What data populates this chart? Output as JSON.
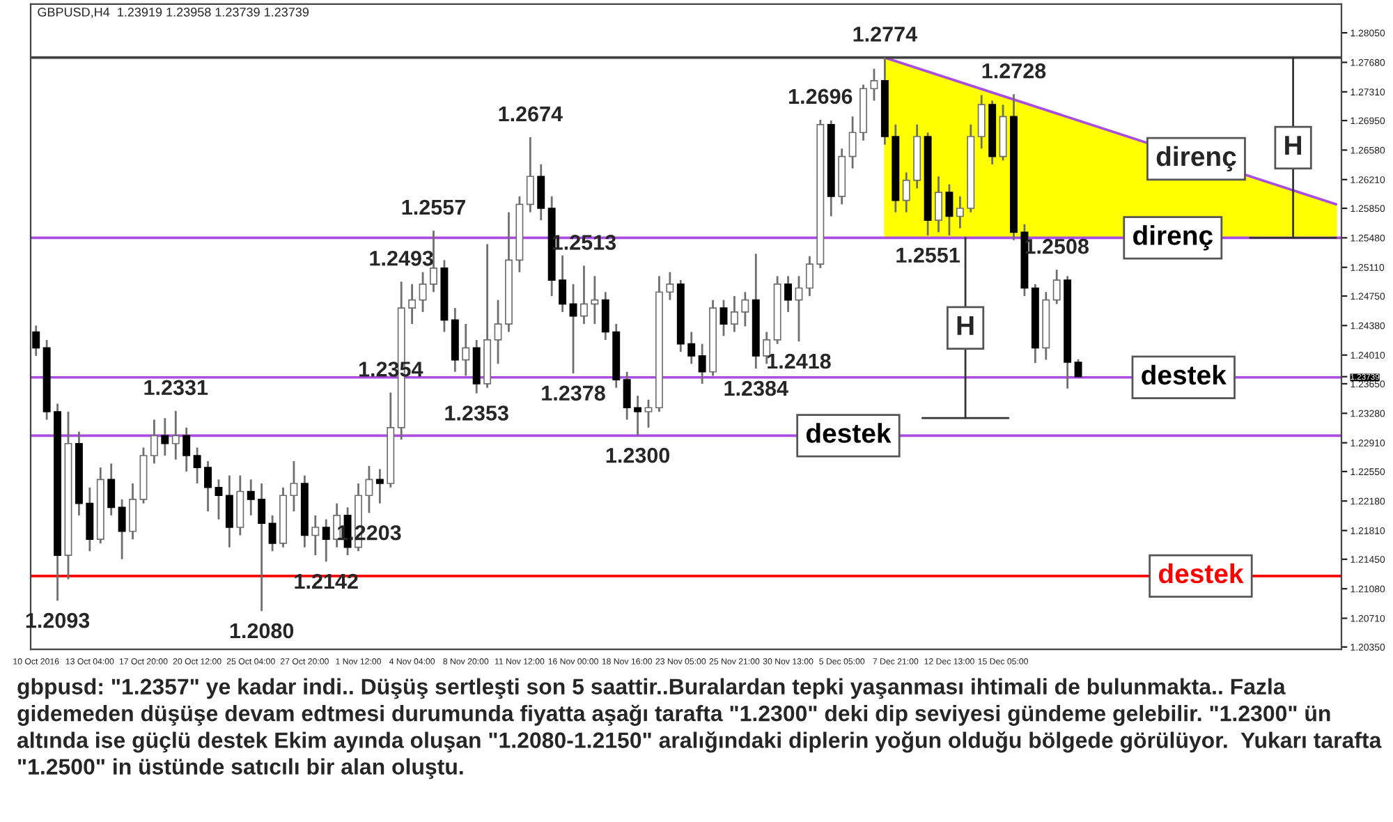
{
  "chart_data": {
    "type": "candlestick",
    "title": "GBPUSD,H4  1.23919 1.23958 1.23739 1.23739",
    "categories": [
      "10 Oct 2016",
      null,
      null,
      null,
      null,
      "13 Oct 04:00",
      null,
      null,
      null,
      null,
      "17 Oct 20:00",
      null,
      null,
      null,
      null,
      "20 Oct 12:00",
      null,
      null,
      null,
      null,
      "25 Oct 04:00",
      null,
      null,
      null,
      null,
      "27 Oct 20:00",
      null,
      null,
      null,
      null,
      "1 Nov 12:00",
      null,
      null,
      null,
      null,
      "4 Nov 04:00",
      null,
      null,
      null,
      null,
      "8 Nov 20:00",
      null,
      null,
      null,
      null,
      "11 Nov 12:00",
      null,
      null,
      null,
      null,
      "16 Nov 00:00",
      null,
      null,
      null,
      null,
      "18 Nov 16:00",
      null,
      null,
      null,
      null,
      "23 Nov 05:00",
      null,
      null,
      null,
      null,
      "25 Nov 21:00",
      null,
      null,
      null,
      null,
      "30 Nov 13:00",
      null,
      null,
      null,
      null,
      "5 Dec 05:00",
      null,
      null,
      null,
      null,
      "7 Dec 21:00",
      null,
      null,
      null,
      null,
      "12 Dec 13:00",
      null,
      null,
      null,
      null,
      "15 Dec 05:00",
      null,
      null,
      null,
      null,
      null,
      null,
      null,
      null,
      null,
      null,
      null,
      null,
      null,
      null,
      null,
      null,
      null,
      null,
      null,
      null,
      null,
      null,
      null,
      null,
      null,
      null,
      null,
      null,
      null,
      null,
      null
    ],
    "ohlc": [
      [
        1.243,
        1.2438,
        1.24,
        1.241
      ],
      [
        1.241,
        1.242,
        1.232,
        1.233
      ],
      [
        1.233,
        1.234,
        1.2093,
        1.215
      ],
      [
        1.215,
        1.233,
        1.212,
        1.229
      ],
      [
        1.229,
        1.2305,
        1.22,
        1.2215
      ],
      [
        1.2215,
        1.2235,
        1.2155,
        1.217
      ],
      [
        1.217,
        1.226,
        1.2165,
        1.2245
      ],
      [
        1.2245,
        1.2265,
        1.22,
        1.221
      ],
      [
        1.221,
        1.222,
        1.2145,
        1.218
      ],
      [
        1.218,
        1.224,
        1.217,
        1.222
      ],
      [
        1.222,
        1.2285,
        1.2215,
        1.2275
      ],
      [
        1.2275,
        1.232,
        1.2265,
        1.23
      ],
      [
        1.23,
        1.2322,
        1.2275,
        1.229
      ],
      [
        1.229,
        1.2331,
        1.227,
        1.23
      ],
      [
        1.23,
        1.231,
        1.2255,
        1.2275
      ],
      [
        1.2275,
        1.2285,
        1.224,
        1.226
      ],
      [
        1.226,
        1.2268,
        1.2205,
        1.2235
      ],
      [
        1.2235,
        1.2245,
        1.2195,
        1.2225
      ],
      [
        1.2225,
        1.225,
        1.216,
        1.2185
      ],
      [
        1.2185,
        1.225,
        1.2175,
        1.223
      ],
      [
        1.223,
        1.2245,
        1.22,
        1.222
      ],
      [
        1.222,
        1.224,
        1.208,
        1.219
      ],
      [
        1.219,
        1.22,
        1.2155,
        1.2165
      ],
      [
        1.2165,
        1.2235,
        1.216,
        1.2225
      ],
      [
        1.2225,
        1.2268,
        1.2205,
        1.224
      ],
      [
        1.224,
        1.225,
        1.216,
        1.2175
      ],
      [
        1.2175,
        1.22,
        1.215,
        1.2185
      ],
      [
        1.2185,
        1.2195,
        1.2142,
        1.217
      ],
      [
        1.217,
        1.2215,
        1.216,
        1.22
      ],
      [
        1.22,
        1.221,
        1.215,
        1.216
      ],
      [
        1.216,
        1.224,
        1.2155,
        1.2225
      ],
      [
        1.2225,
        1.2262,
        1.2203,
        1.2245
      ],
      [
        1.2245,
        1.2258,
        1.2215,
        1.224
      ],
      [
        1.224,
        1.2354,
        1.2235,
        1.231
      ],
      [
        1.231,
        1.2493,
        1.2295,
        1.246
      ],
      [
        1.246,
        1.249,
        1.244,
        1.247
      ],
      [
        1.247,
        1.2505,
        1.2455,
        1.249
      ],
      [
        1.249,
        1.2557,
        1.248,
        1.251
      ],
      [
        1.251,
        1.252,
        1.243,
        1.2445
      ],
      [
        1.2445,
        1.246,
        1.238,
        1.2395
      ],
      [
        1.2395,
        1.244,
        1.2375,
        1.241
      ],
      [
        1.241,
        1.242,
        1.2353,
        1.2365
      ],
      [
        1.2365,
        1.254,
        1.236,
        1.242
      ],
      [
        1.242,
        1.247,
        1.239,
        1.244
      ],
      [
        1.244,
        1.258,
        1.243,
        1.252
      ],
      [
        1.252,
        1.26,
        1.2505,
        1.259
      ],
      [
        1.259,
        1.2674,
        1.258,
        1.2625
      ],
      [
        1.2625,
        1.264,
        1.257,
        1.2585
      ],
      [
        1.2585,
        1.26,
        1.2475,
        1.2495
      ],
      [
        1.2495,
        1.2526,
        1.2455,
        1.2465
      ],
      [
        1.2465,
        1.249,
        1.2378,
        1.245
      ],
      [
        1.245,
        1.2513,
        1.244,
        1.2465
      ],
      [
        1.2465,
        1.25,
        1.244,
        1.247
      ],
      [
        1.247,
        1.248,
        1.242,
        1.243
      ],
      [
        1.243,
        1.244,
        1.236,
        1.237
      ],
      [
        1.237,
        1.238,
        1.232,
        1.2335
      ],
      [
        1.2335,
        1.235,
        1.23,
        1.233
      ],
      [
        1.233,
        1.2345,
        1.231,
        1.2335
      ],
      [
        1.2335,
        1.25,
        1.233,
        1.248
      ],
      [
        1.248,
        1.2505,
        1.247,
        1.249
      ],
      [
        1.249,
        1.2495,
        1.2405,
        1.2415
      ],
      [
        1.2415,
        1.243,
        1.239,
        1.24
      ],
      [
        1.24,
        1.2415,
        1.2365,
        1.238
      ],
      [
        1.238,
        1.247,
        1.2375,
        1.246
      ],
      [
        1.246,
        1.247,
        1.2425,
        1.244
      ],
      [
        1.244,
        1.2475,
        1.243,
        1.2455
      ],
      [
        1.2455,
        1.248,
        1.2437,
        1.247
      ],
      [
        1.247,
        1.2528,
        1.2384,
        1.24
      ],
      [
        1.24,
        1.243,
        1.239,
        1.242
      ],
      [
        1.242,
        1.25,
        1.2415,
        1.249
      ],
      [
        1.249,
        1.25,
        1.2455,
        1.247
      ],
      [
        1.247,
        1.25,
        1.2418,
        1.2485
      ],
      [
        1.2485,
        1.2525,
        1.2475,
        1.2515
      ],
      [
        1.2515,
        1.2696,
        1.251,
        1.269
      ],
      [
        1.269,
        1.2695,
        1.2575,
        1.26
      ],
      [
        1.26,
        1.266,
        1.259,
        1.265
      ],
      [
        1.265,
        1.27,
        1.2635,
        1.268
      ],
      [
        1.268,
        1.274,
        1.267,
        1.2735
      ],
      [
        1.2735,
        1.276,
        1.272,
        1.2745
      ],
      [
        1.2745,
        1.2774,
        1.2665,
        1.2675
      ],
      [
        1.2675,
        1.269,
        1.258,
        1.2595
      ],
      [
        1.2595,
        1.263,
        1.258,
        1.262
      ],
      [
        1.262,
        1.269,
        1.261,
        1.2675
      ],
      [
        1.2675,
        1.268,
        1.2551,
        1.257
      ],
      [
        1.257,
        1.2625,
        1.2555,
        1.2605
      ],
      [
        1.2605,
        1.2615,
        1.2551,
        1.2575
      ],
      [
        1.2575,
        1.26,
        1.256,
        1.2585
      ],
      [
        1.2585,
        1.269,
        1.258,
        1.2675
      ],
      [
        1.2675,
        1.2727,
        1.266,
        1.2715
      ],
      [
        1.2715,
        1.272,
        1.264,
        1.265
      ],
      [
        1.265,
        1.2715,
        1.2645,
        1.27
      ],
      [
        1.27,
        1.2728,
        1.2545,
        1.2555
      ],
      [
        1.2555,
        1.2565,
        1.2475,
        1.2485
      ],
      [
        1.2485,
        1.249,
        1.2391,
        1.241
      ],
      [
        1.241,
        1.248,
        1.2395,
        1.247
      ],
      [
        1.247,
        1.2508,
        1.2465,
        1.2495
      ],
      [
        1.2495,
        1.25,
        1.2359,
        1.2392
      ],
      [
        1.23919,
        1.23958,
        1.23739,
        1.23739
      ],
      null,
      null,
      null,
      null,
      null,
      null,
      null,
      null,
      null,
      null,
      null,
      null,
      null,
      null,
      null,
      null,
      null,
      null,
      null,
      null,
      null,
      null,
      null,
      null
    ],
    "series": [
      {
        "type": "area",
        "color": "#ffff00",
        "values": [
          null,
          null,
          null,
          null,
          null,
          null,
          null,
          null,
          null,
          null,
          null,
          null,
          null,
          null,
          null,
          null,
          null,
          null,
          null,
          null,
          null,
          null,
          null,
          null,
          null,
          null,
          null,
          null,
          null,
          null,
          null,
          null,
          null,
          null,
          null,
          null,
          null,
          null,
          null,
          null,
          null,
          null,
          null,
          null,
          null,
          null,
          null,
          null,
          null,
          null,
          null,
          null,
          null,
          null,
          null,
          null,
          null,
          null,
          null,
          null,
          null,
          null,
          null,
          null,
          null,
          null,
          null,
          null,
          null,
          null,
          null,
          null,
          null,
          null,
          null,
          null,
          null,
          null,
          null,
          1.2774,
          null,
          null,
          null,
          null,
          null,
          null,
          null,
          null,
          null,
          null,
          null,
          null,
          null,
          null,
          null,
          null,
          null,
          null,
          null,
          null,
          null,
          null,
          null,
          null,
          null,
          null,
          null,
          null,
          null,
          null,
          null,
          null,
          null,
          null,
          null,
          null,
          null,
          null,
          null,
          null,
          null,
          1.259
        ]
      },
      {
        "type": "line",
        "name": "direnç",
        "color": "#a94ee0",
        "values": [
          null,
          null,
          null,
          null,
          null,
          null,
          null,
          null,
          null,
          null,
          null,
          null,
          null,
          null,
          null,
          null,
          null,
          null,
          null,
          null,
          null,
          null,
          null,
          null,
          null,
          null,
          null,
          null,
          null,
          null,
          null,
          null,
          null,
          null,
          null,
          null,
          null,
          null,
          null,
          null,
          null,
          null,
          null,
          null,
          null,
          null,
          null,
          null,
          null,
          null,
          null,
          null,
          null,
          null,
          null,
          null,
          null,
          null,
          null,
          null,
          null,
          null,
          null,
          null,
          null,
          null,
          null,
          null,
          null,
          null,
          null,
          null,
          null,
          null,
          null,
          null,
          null,
          null,
          null,
          1.2774,
          null,
          null,
          null,
          null,
          null,
          null,
          null,
          null,
          null,
          null,
          null,
          null,
          null,
          null,
          null,
          null,
          null,
          null,
          null,
          null,
          null,
          null,
          null,
          null,
          null,
          null,
          null,
          null,
          null,
          null,
          null,
          null,
          null,
          null,
          null,
          null,
          null,
          null,
          null,
          null,
          null,
          1.259
        ]
      }
    ],
    "ylim": [
      1.2032,
      1.2841
    ],
    "yticks": [
      {
        "value": 1.2805,
        "label": "1.28050"
      },
      {
        "value": 1.2768,
        "label": "1.27680"
      },
      {
        "value": 1.2731,
        "label": "1.27310"
      },
      {
        "value": 1.2695,
        "label": "1.26950"
      },
      {
        "value": 1.2658,
        "label": "1.26580"
      },
      {
        "value": 1.2621,
        "label": "1.26210"
      },
      {
        "value": 1.2585,
        "label": "1.25850"
      },
      {
        "value": 1.2548,
        "label": "1.25480"
      },
      {
        "value": 1.2511,
        "label": "1.25110"
      },
      {
        "value": 1.2475,
        "label": "1.24750"
      },
      {
        "value": 1.2438,
        "label": "1.24380"
      },
      {
        "value": 1.2401,
        "label": "1.24010"
      },
      {
        "value": 1.23739,
        "label": "1.23739"
      },
      {
        "value": 1.2365,
        "label": "1.23650"
      },
      {
        "value": 1.2328,
        "label": "1.23280"
      },
      {
        "value": 1.2291,
        "label": "1.22910"
      },
      {
        "value": 1.2255,
        "label": "1.22550"
      },
      {
        "value": 1.2218,
        "label": "1.22180"
      },
      {
        "value": 1.2181,
        "label": "1.21810"
      },
      {
        "value": 1.2145,
        "label": "1.21450"
      },
      {
        "value": 1.2108,
        "label": "1.21080"
      },
      {
        "value": 1.2071,
        "label": "1.20710"
      },
      {
        "value": 1.2035,
        "label": "1.20350"
      }
    ],
    "ref_lines": [
      {
        "axis": "y",
        "value": 1.2548,
        "label": "direnç",
        "color": "#a94ee0"
      },
      {
        "axis": "y",
        "value": 1.2373,
        "label": "destek",
        "color": "#a94ee0"
      },
      {
        "axis": "y",
        "value": 1.23,
        "label": "destek",
        "color": "#a94ee0"
      },
      {
        "axis": "y",
        "value": 1.2124,
        "label": "destek",
        "color": "#ff0000"
      },
      {
        "axis": "y",
        "value": 1.2774,
        "color": "#404040"
      }
    ],
    "annotations": [
      {
        "text": "1.2093",
        "y": 1.2093
      },
      {
        "text": "1.2331",
        "y": 1.2331
      },
      {
        "text": "1.2080",
        "y": 1.208
      },
      {
        "text": "1.2142",
        "y": 1.2142
      },
      {
        "text": "1.2203",
        "y": 1.2203
      },
      {
        "text": "1.2354",
        "y": 1.2354
      },
      {
        "text": "1.2493",
        "y": 1.2493
      },
      {
        "text": "1.2557",
        "y": 1.2557
      },
      {
        "text": "1.2353",
        "y": 1.2353
      },
      {
        "text": "1.2674",
        "y": 1.2674
      },
      {
        "text": "1.2378",
        "y": 1.2378
      },
      {
        "text": "1.2513",
        "y": 1.2513
      },
      {
        "text": "1.2300",
        "y": 1.23
      },
      {
        "text": "1.2384",
        "y": 1.2384
      },
      {
        "text": "1.2418",
        "y": 1.2418
      },
      {
        "text": "1.2696",
        "y": 1.2696
      },
      {
        "text": "1.2774",
        "y": 1.2774
      },
      {
        "text": "1.2551",
        "y": 1.2551
      },
      {
        "text": "1.2728",
        "y": 1.2728
      },
      {
        "text": "1.2508",
        "y": 1.2508
      },
      {
        "text": "H",
        "y": 1.2661
      },
      {
        "text": "H",
        "y": 1.2435
      },
      "gbpusd: \"1.2357\" ye kadar indi.. Düşüş sertleşti son 5 saattir..Buralardan tepki yaşanması ihtimali de bulunmakta.. Fazla gidemeden düşüşe devam edtmesi durumunda fiyatta aşağı tarafta \"1.2300\" deki dip seviyesi gündeme gelebilir. \"1.2300\" ün altında ise güçlü destek Ekim ayında oluşan \"1.2080-1.2150\" aralığındaki diplerin yoğun olduğu bölgede görülüyor.  Yukarı tarafta \"1.2500\" in üstünde satıcılı bir alan oluştu."
    ]
  }
}
